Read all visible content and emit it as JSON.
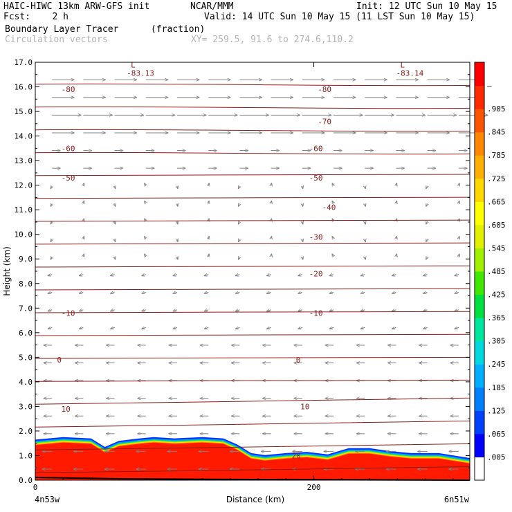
{
  "header": {
    "left_line1": "HAIC-HIWC 13km ARW-GFS init",
    "center_line1": "NCAR/MMM",
    "right_line1": "Init: 12 UTC Sun 10 May 15",
    "left_line2": "Fcst:    2 h",
    "right_line2": "Valid: 14 UTC Sun 10 May 15 (11 LST Sun 10 May 15)",
    "field_name": "Boundary Layer Tracer",
    "field_units": "(fraction)",
    "vector_label": "Circulation vectors",
    "xy_label": "XY= 259.5, 91.6 to 274.6,110.2"
  },
  "colors": {
    "contour": "#8b1a1a",
    "vector": "#808080",
    "tracer_red": "#ff1a00"
  },
  "chart_data": {
    "type": "heatmap",
    "xlabel": "Distance (km)",
    "ylabel": "Height (km)",
    "ylim": [
      0,
      17
    ],
    "xlim": [
      0,
      312
    ],
    "y_ticks": [
      "0.0",
      "1.0",
      "2.0",
      "3.0",
      "4.0",
      "5.0",
      "6.0",
      "7.0",
      "8.0",
      "9.0",
      "10.0",
      "11.0",
      "12.0",
      "13.0",
      "14.0",
      "15.0",
      "16.0",
      "17.0"
    ],
    "x_ticks": [
      {
        "x": 0,
        "label": "0"
      },
      {
        "x": 200,
        "label": "200"
      }
    ],
    "x_endpoints": {
      "left": "4n53w",
      "right": "6n51w"
    },
    "tracer_top_km": [
      [
        0,
        1.65
      ],
      [
        20,
        1.75
      ],
      [
        40,
        1.7
      ],
      [
        50,
        1.35
      ],
      [
        60,
        1.6
      ],
      [
        75,
        1.7
      ],
      [
        85,
        1.75
      ],
      [
        100,
        1.7
      ],
      [
        120,
        1.75
      ],
      [
        135,
        1.7
      ],
      [
        145,
        1.45
      ],
      [
        155,
        1.1
      ],
      [
        165,
        1.02
      ],
      [
        180,
        1.1
      ],
      [
        195,
        1.15
      ],
      [
        210,
        1.05
      ],
      [
        225,
        1.3
      ],
      [
        240,
        1.3
      ],
      [
        255,
        1.18
      ],
      [
        270,
        1.1
      ],
      [
        290,
        1.1
      ],
      [
        312,
        0.9
      ]
    ],
    "colorbar": {
      "labels": [
        ".005",
        ".065",
        ".125",
        ".185",
        ".245",
        ".305",
        ".365",
        ".425",
        ".485",
        ".545",
        ".605",
        ".665",
        ".725",
        ".785",
        ".845",
        ".905",
        "–"
      ],
      "colors": [
        "#ffffff",
        "#0000ff",
        "#0040ff",
        "#0080ff",
        "#00b0ff",
        "#00d8e0",
        "#00e8a0",
        "#00e040",
        "#40e800",
        "#a0f000",
        "#e0f000",
        "#ffff00",
        "#ffd800",
        "#ffb000",
        "#ff8800",
        "#ff5500",
        "#ff2a00",
        "#ff0000"
      ]
    },
    "temperature_contours": [
      {
        "label": "20",
        "y_left": 1.0,
        "y_right": 0.55,
        "label_x": 0.59
      },
      {
        "label": "10",
        "y_left": 2.9,
        "y_right": 3.3,
        "label_x": 0.06
      },
      {
        "label": "10",
        "label_x": 0.61,
        "label_y": 3.0
      },
      {
        "label": "0",
        "y_left": 4.9,
        "y_right": 4.95,
        "label_x": 0.05
      },
      {
        "label": "0",
        "label_x": 0.6,
        "label_y": 4.9
      },
      {
        "label": "-10",
        "y_left": 6.8,
        "y_right": 6.8,
        "label_x": 0.06
      },
      {
        "label": "-10",
        "label_x": 0.63,
        "label_y": 6.8
      },
      {
        "label": "-20",
        "label_x": 0.63,
        "label_y": 8.4
      },
      {
        "label": "-30",
        "label_x": 0.63,
        "label_y": 9.9
      },
      {
        "label": "-40",
        "label_x": 0.66,
        "label_y": 11.1
      },
      {
        "label": "-50",
        "y_left": 12.3,
        "y_right": 12.2,
        "label_x": 0.06
      },
      {
        "label": "-50",
        "label_x": 0.63,
        "label_y": 12.3
      },
      {
        "label": "-60",
        "y_left": 13.5,
        "y_right": 13.3,
        "label_x": 0.06
      },
      {
        "label": "-60",
        "label_x": 0.63,
        "label_y": 13.5
      },
      {
        "label": "-70",
        "label_x": 0.65,
        "label_y": 14.6
      },
      {
        "label": "-80",
        "y_left": 15.9,
        "y_right": 16.0,
        "label_x": 0.06
      },
      {
        "label": "-80",
        "label_x": 0.65,
        "label_y": 15.9
      }
    ],
    "extrema": [
      {
        "marker": "L",
        "value": "-83.13",
        "x_frac": 0.22,
        "y_km": 16.85
      },
      {
        "marker": "L",
        "value": "-83.14",
        "x_frac": 0.84,
        "y_km": 16.85
      }
    ]
  }
}
